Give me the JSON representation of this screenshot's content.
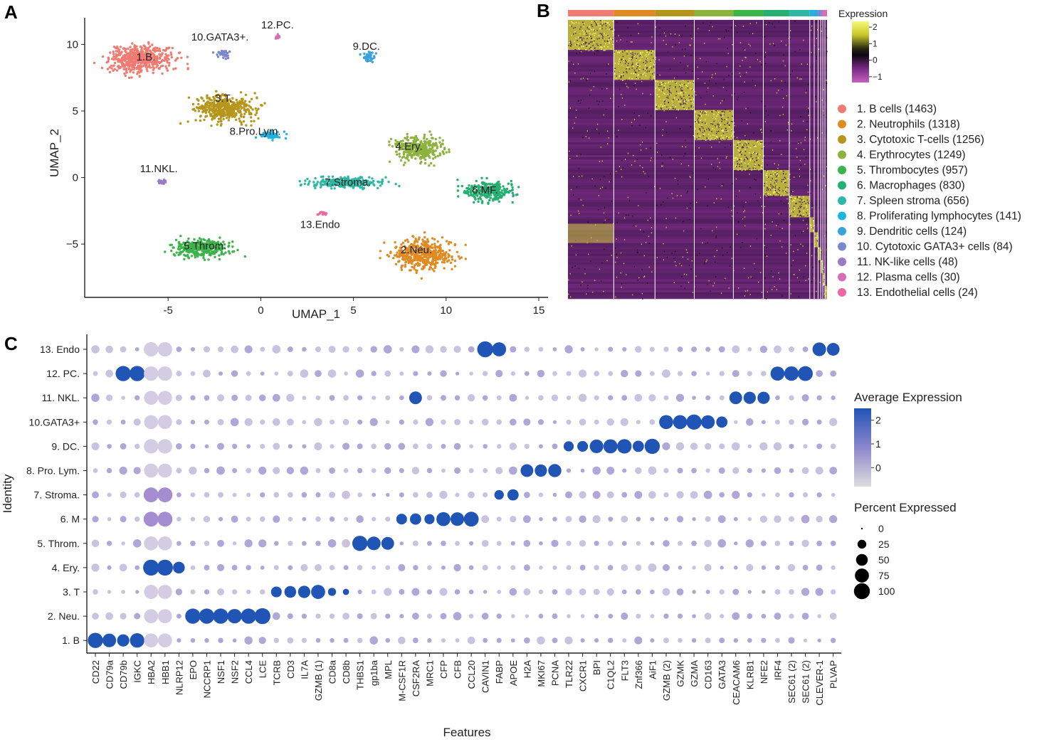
{
  "panel_labels": [
    "A",
    "B",
    "C"
  ],
  "chart_data": [
    {
      "type": "scatter",
      "panel": "A",
      "xlabel": "UMAP_1",
      "ylabel": "UMAP_2",
      "xlim": [
        -9.5,
        15.5
      ],
      "ylim": [
        -9,
        12
      ],
      "xticks": [
        -5,
        0,
        5,
        10,
        15
      ],
      "yticks": [
        -5,
        0,
        5,
        10
      ],
      "xtick_labels": [
        "-5",
        "0",
        "5",
        "10",
        "15"
      ],
      "ytick_labels": [
        "−5",
        "0",
        "5",
        "10"
      ],
      "clusters": [
        {
          "label": "1.B.",
          "color": "#F07B72",
          "center": [
            -6.5,
            8.9
          ],
          "spread": [
            1.5,
            0.9
          ],
          "n": 520,
          "label_pos": [
            -6.2,
            8.8
          ]
        },
        {
          "label": "2.Neu.",
          "color": "#E08B21",
          "center": [
            8.8,
            -5.8
          ],
          "spread": [
            1.5,
            1.0
          ],
          "n": 470,
          "label_pos": [
            8.4,
            -5.7
          ]
        },
        {
          "label": "3.T.",
          "color": "#B5961B",
          "center": [
            -2.0,
            5.2
          ],
          "spread": [
            1.5,
            0.85
          ],
          "n": 440,
          "label_pos": [
            -2.0,
            5.7
          ]
        },
        {
          "label": "4.Ery.",
          "color": "#8DB33E",
          "center": [
            8.5,
            2.2
          ],
          "spread": [
            1.2,
            0.75
          ],
          "n": 380,
          "label_pos": [
            8.0,
            2.1
          ]
        },
        {
          "label": "5.Throm.",
          "color": "#3BB44A",
          "center": [
            -3.2,
            -5.3
          ],
          "spread": [
            1.3,
            0.6
          ],
          "n": 340,
          "label_pos": [
            -3.0,
            -5.4
          ]
        },
        {
          "label": "6.MF.",
          "color": "#25AF71",
          "center": [
            12.3,
            -1.0
          ],
          "spread": [
            1.2,
            0.65
          ],
          "n": 290,
          "label_pos": [
            12.1,
            -1.2
          ]
        },
        {
          "label": "7.Stroma.",
          "color": "#2DB8A6",
          "center": [
            4.5,
            -0.4
          ],
          "spread": [
            1.9,
            0.35
          ],
          "n": 260,
          "label_pos": [
            4.7,
            -0.6
          ]
        },
        {
          "label": "8.Pro.Lym.",
          "color": "#1FB3E0",
          "center": [
            0.6,
            3.2
          ],
          "spread": [
            0.6,
            0.3
          ],
          "n": 60,
          "label_pos": [
            -0.3,
            3.2
          ]
        },
        {
          "label": "9.DC.",
          "color": "#3AA2DC",
          "center": [
            5.8,
            9.1
          ],
          "spread": [
            0.3,
            0.3
          ],
          "n": 45,
          "label_pos": [
            5.7,
            9.6
          ]
        },
        {
          "label": "10.GATA3+.",
          "color": "#7B87CC",
          "center": [
            -2.0,
            9.3
          ],
          "spread": [
            0.3,
            0.3
          ],
          "n": 35,
          "label_pos": [
            -2.2,
            10.3
          ]
        },
        {
          "label": "11.NKL.",
          "color": "#9A7BC8",
          "center": [
            -5.4,
            -0.3
          ],
          "spread": [
            0.2,
            0.15
          ],
          "n": 22,
          "label_pos": [
            -5.5,
            0.4
          ]
        },
        {
          "label": "12.PC.",
          "color": "#D66EB7",
          "center": [
            0.9,
            10.6
          ],
          "spread": [
            0.12,
            0.15
          ],
          "n": 18,
          "label_pos": [
            0.9,
            11.2
          ]
        },
        {
          "label": "13.Endo",
          "color": "#EE67A2",
          "center": [
            3.4,
            -2.7
          ],
          "spread": [
            0.25,
            0.1
          ],
          "n": 14,
          "label_pos": [
            3.2,
            -3.8
          ]
        }
      ]
    },
    {
      "type": "heatmap",
      "panel": "B",
      "legend_title": "Expression",
      "colorbar_ticks": [
        2,
        1,
        0,
        -1
      ],
      "colorbar_tick_labels": [
        "2",
        "1",
        "0",
        "−1"
      ],
      "colorscale": [
        "#B84FB0",
        "#7B2C8A",
        "#000000",
        "#3C3C10",
        "#E2E533",
        "#F8F87A"
      ],
      "cluster_colors": [
        "#F07B72",
        "#E08B21",
        "#B5961B",
        "#8DB33E",
        "#3BB44A",
        "#25AF71",
        "#2DB8A6",
        "#1FB3E0",
        "#3AA2DC",
        "#7B87CC",
        "#9A7BC8",
        "#D66EB7",
        "#EE67A2"
      ],
      "cluster_sizes": [
        1463,
        1318,
        1256,
        1249,
        957,
        830,
        656,
        141,
        124,
        84,
        48,
        30,
        24
      ],
      "legend_entries": [
        "1. B cells (1463)",
        "2. Neutrophils (1318)",
        "3. Cytotoxic T-cells (1256)",
        "4. Erythrocytes (1249)",
        "5. Thrombocytes (957)",
        "6. Macrophages (830)",
        "7. Spleen stroma (656)",
        "8. Proliferating lymphocytes (141)",
        "9. Dendritic cells (124)",
        "10. Cytotoxic GATA3+ cells (84)",
        "11. NK-like cells (48)",
        "12. Plasma cells (30)",
        "13. Endothelial cells (24)"
      ]
    },
    {
      "type": "dotplot",
      "panel": "C",
      "xlabel": "Features",
      "ylabel": "Identity",
      "features": [
        "CD22",
        "CD79a",
        "CD79b",
        "IGKC",
        "HBA2",
        "HBB1",
        "NLRP12",
        "EPO",
        "NCCRP1",
        "NSF1",
        "NSF2",
        "CCL4",
        "LCE",
        "TCRB",
        "CD3",
        "IL7A",
        "GZMB (1)",
        "CD8a",
        "CD8b",
        "THBS1",
        "gp1ba",
        "MPL",
        "M-CSF1R",
        "CSF2RA",
        "MRC1",
        "CFP",
        "CFB",
        "CCL20",
        "CAVIN1",
        "FABP",
        "APOE",
        "H2A",
        "MKI67",
        "PCNA",
        "TLR22",
        "CXCR1",
        "BPI",
        "C1QL2",
        "FLT3",
        "Znf366",
        "AiF1",
        "GZMB (2)",
        "GZMK",
        "GZMA",
        "CD163",
        "GATA3",
        "CEACAM6",
        "KLRB1",
        "NFE2",
        "IRF4",
        "SEC61 (2)",
        "SEC61 (2)",
        "CLEVER-1",
        "PLVAP"
      ],
      "identities": [
        "1. B",
        "2. Neu.",
        "3. T",
        "4. Ery.",
        "5. Throm.",
        "6. M",
        "7. Stroma.",
        "8. Pro. Lym.",
        "9. DC.",
        "10.GATA3+",
        "11. NKL.",
        "12. PC.",
        "13. Endo"
      ],
      "marker_genes": {
        "1. B": {
          "CD22": 90,
          "CD79a": 70,
          "CD79b": 55,
          "IGKC": 80
        },
        "2. Neu.": {
          "EPO": 90,
          "NCCRP1": 90,
          "NSF1": 90,
          "NSF2": 80,
          "CCL4": 90,
          "LCE": 100
        },
        "3. T": {
          "TCRB": 40,
          "CD3": 50,
          "IL7A": 55,
          "GZMB (1)": 75,
          "CD8a": 20,
          "CD8b": 10
        },
        "4. Ery.": {
          "NLRP12": 50
        },
        "5. Throm.": {
          "THBS1": 90,
          "gp1ba": 70,
          "MPL": 60
        },
        "6. M": {
          "M-CSF1R": 40,
          "CSF2RA": 45,
          "MRC1": 35,
          "CFP": 75,
          "CFB": 70,
          "CCL20": 85
        },
        "7. Stroma.": {
          "FABP": 30,
          "APOE": 45
        },
        "8. Pro. Lym.": {
          "H2A": 60,
          "MKI67": 55,
          "PCNA": 65
        },
        "9. DC.": {
          "TLR22": 35,
          "CXCR1": 40,
          "BPI": 70,
          "C1QL2": 75,
          "FLT3": 80,
          "Znf366": 45,
          "AiF1": 90
        },
        "10.GATA3+": {
          "GZMB (2)": 75,
          "GZMK": 75,
          "GZMA": 90,
          "CD163": 70,
          "GATA3": 45
        },
        "11. NKL.": {
          "CSF2RA": 60,
          "CEACAM6": 60,
          "KLRB1": 55,
          "NFE2": 55
        },
        "12. PC.": {
          "CD79b": 90,
          "IGKC": 90,
          "IRF4": 75,
          "SEC61 (2)": 80,
          "SEC61 (2)#2": 85
        },
        "13. Endo": {
          "CAVIN1": 100,
          "FABP": 75,
          "CLEVER-1": 70,
          "PLVAP": 60
        }
      },
      "color_legend_title": "Average Expression",
      "color_ticks": [
        2,
        1,
        0
      ],
      "color_tick_labels": [
        "2",
        "1",
        "0"
      ],
      "size_legend_title": "Percent Expressed",
      "size_ticks": [
        0,
        25,
        50,
        75,
        100
      ],
      "size_tick_labels": [
        "0",
        "25",
        "50",
        "75",
        "100"
      ],
      "high_color": "#2155B5",
      "mid_color": "#A79BD4",
      "low_color": "#D7D4E3"
    }
  ]
}
